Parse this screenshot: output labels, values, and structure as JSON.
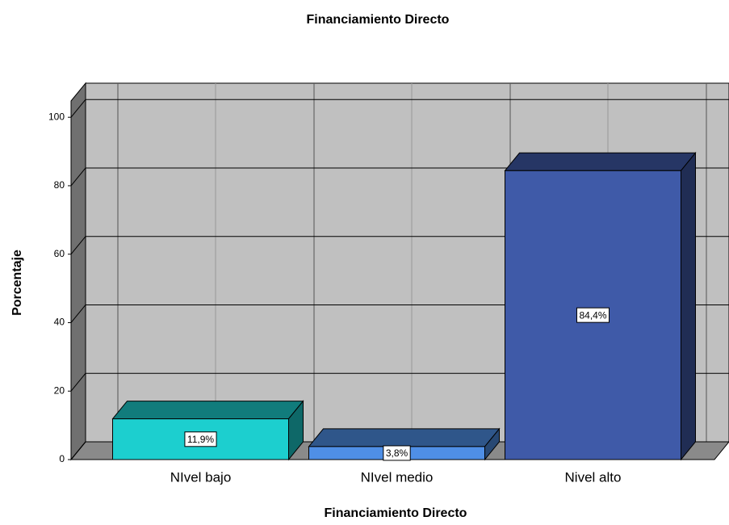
{
  "chart_data": {
    "type": "bar3d",
    "title": "Financiamiento Directo",
    "x_label": "Financiamiento Directo",
    "y_label": "Porcentaje",
    "categories": [
      "NIvel bajo",
      "NIvel medio",
      "Nivel alto"
    ],
    "values": [
      11.9,
      3.8,
      84.4
    ],
    "value_labels": [
      "11,9%",
      "3,8%",
      "84,4%"
    ],
    "colors": [
      "#1ccfcf",
      "#4f8fe6",
      "#3f5aa8"
    ],
    "ylim": [
      0,
      105
    ],
    "yticks": [
      0,
      20,
      40,
      60,
      80,
      100
    ],
    "grid": true
  }
}
